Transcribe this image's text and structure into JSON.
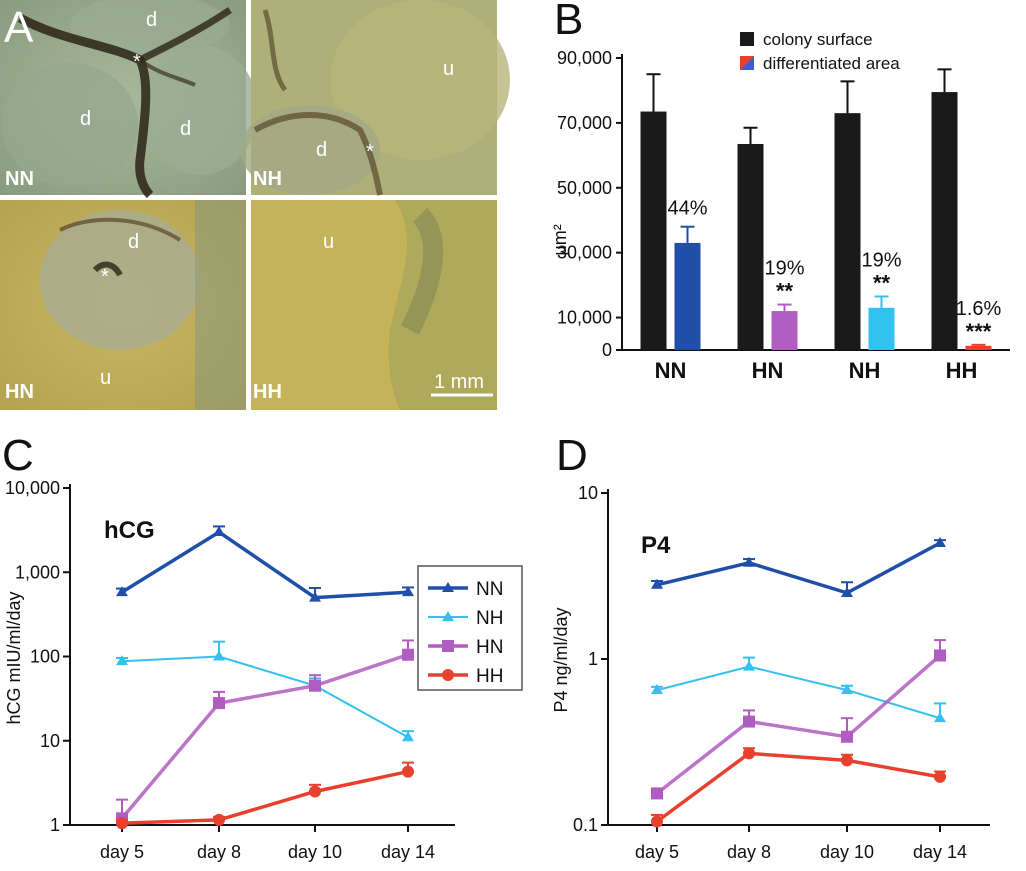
{
  "panels": {
    "a": "A",
    "b": "B",
    "c": "C",
    "d": "D"
  },
  "micrographs": [
    {
      "label": "NN",
      "region_labels": [
        "d",
        "d",
        "d",
        "*"
      ]
    },
    {
      "label": "NH",
      "region_labels": [
        "u",
        "d",
        "*"
      ]
    },
    {
      "label": "HN",
      "region_labels": [
        "d",
        "*",
        "u"
      ]
    },
    {
      "label": "HH",
      "region_labels": [
        "u"
      ],
      "scale_bar": "1 mm"
    }
  ],
  "colors": {
    "black": "#1a1a1a",
    "NN": "#1f4fa8",
    "NH": "#33c1ef",
    "HN": "#b05cc0",
    "HH": "#e8402e"
  },
  "chart_data": [
    {
      "type": "bar",
      "panel": "B",
      "categories": [
        "NN",
        "HN",
        "NH",
        "HH"
      ],
      "ylabel": "μm²",
      "ylim": [
        0,
        90000
      ],
      "yticks": [
        "90,000",
        "70,000",
        "50,000",
        "30,000",
        "10,000",
        "0"
      ],
      "series": [
        {
          "name": "colony surface",
          "values": [
            73500,
            63500,
            73000,
            79500
          ],
          "errors": [
            11500,
            5000,
            9800,
            7000
          ]
        },
        {
          "name": "differentiated area",
          "values": [
            33000,
            12000,
            13000,
            1300
          ],
          "errors": [
            5000,
            2000,
            3500,
            300
          ]
        }
      ],
      "annotations": [
        {
          "pct": "44%",
          "stars": ""
        },
        {
          "pct": "19%",
          "stars": "**"
        },
        {
          "pct": "19%",
          "stars": "**"
        },
        {
          "pct": "1.6%",
          "stars": "***"
        }
      ]
    },
    {
      "type": "line",
      "panel": "C",
      "title": "hCG",
      "ylabel": "hCG mIU/ml/day",
      "yscale": "log",
      "ylim": [
        1,
        10000
      ],
      "yticks": [
        "10,000",
        "1,000",
        "100",
        "10",
        "1"
      ],
      "categories": [
        "day 5",
        "day 8",
        "day 10",
        "day 14"
      ],
      "series": [
        {
          "name": "NN",
          "values": [
            580,
            3000,
            500,
            580
          ],
          "errors": [
            60,
            500,
            150,
            80
          ]
        },
        {
          "name": "NH",
          "values": [
            88,
            100,
            45,
            11
          ],
          "errors": [
            8,
            50,
            10,
            2
          ]
        },
        {
          "name": "HN",
          "values": [
            1.2,
            28,
            45,
            105
          ],
          "errors": [
            0.8,
            10,
            15,
            50
          ]
        },
        {
          "name": "HH",
          "values": [
            1.05,
            1.15,
            2.5,
            4.3
          ],
          "errors": [
            0.1,
            0.1,
            0.5,
            1.2
          ]
        }
      ]
    },
    {
      "type": "line",
      "panel": "D",
      "title": "P4",
      "ylabel": "P4 ng/ml/day",
      "yscale": "log",
      "ylim": [
        0.1,
        10
      ],
      "yticks": [
        "10",
        "1",
        "0.1"
      ],
      "categories": [
        "day 5",
        "day 8",
        "day 10",
        "day 14"
      ],
      "series": [
        {
          "name": "NN",
          "values": [
            2.8,
            3.8,
            2.5,
            5.0
          ],
          "errors": [
            0.15,
            0.2,
            0.4,
            0.2
          ]
        },
        {
          "name": "NH",
          "values": [
            0.65,
            0.9,
            0.65,
            0.44
          ],
          "errors": [
            0.03,
            0.12,
            0.04,
            0.1
          ]
        },
        {
          "name": "HN",
          "values": [
            0.155,
            0.42,
            0.34,
            1.05
          ],
          "errors": [
            0.01,
            0.07,
            0.1,
            0.25
          ]
        },
        {
          "name": "HH",
          "values": [
            0.105,
            0.27,
            0.245,
            0.195
          ],
          "errors": [
            0.01,
            0.02,
            0.02,
            0.015
          ]
        }
      ]
    }
  ]
}
